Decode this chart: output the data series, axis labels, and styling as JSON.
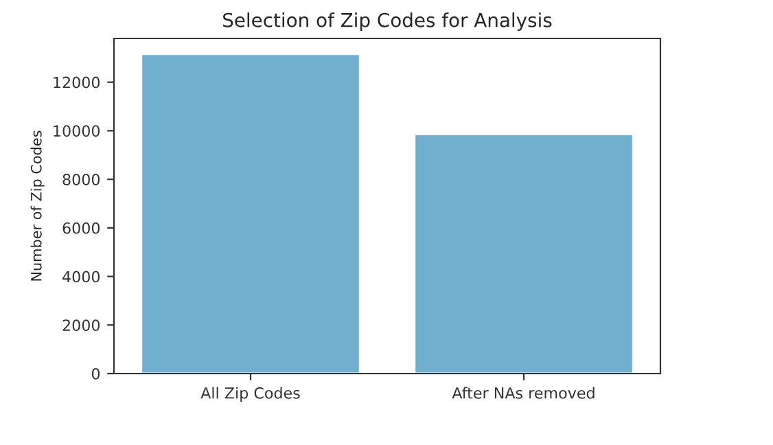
{
  "chart_data": {
    "type": "bar",
    "title": "Selection of Zip Codes for Analysis",
    "ylabel": "Number of Zip Codes",
    "categories": [
      "All Zip Codes",
      "After NAs removed"
    ],
    "values": [
      13150,
      9860
    ],
    "color": "#71afce",
    "ylim": [
      0,
      13800
    ],
    "yticks": [
      0,
      2000,
      4000,
      6000,
      8000,
      10000,
      12000
    ],
    "grid": false,
    "legend": false
  }
}
